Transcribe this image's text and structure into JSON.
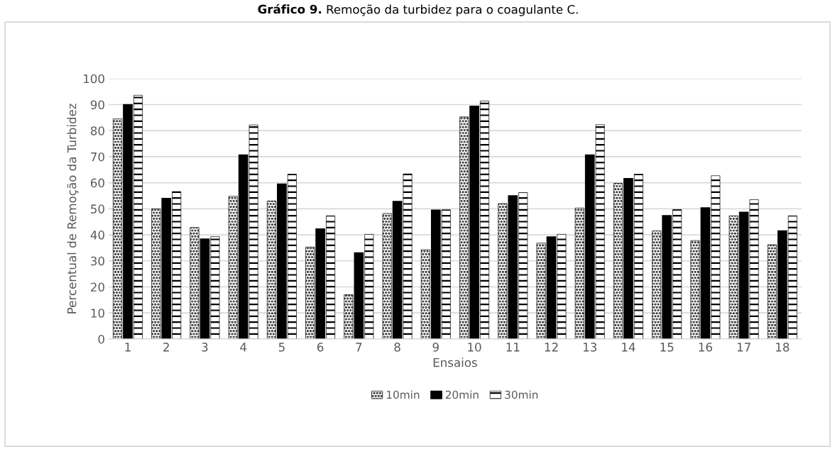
{
  "chart_data": {
    "type": "bar",
    "title": "Gráfico 9. Remoção da turbidez para o coagulante C.",
    "xlabel": "Ensaios",
    "ylabel": "Percentual de Remoção da Turbidez",
    "categories": [
      "1",
      "2",
      "3",
      "4",
      "5",
      "6",
      "7",
      "8",
      "9",
      "10",
      "11",
      "12",
      "13",
      "14",
      "15",
      "16",
      "17",
      "18"
    ],
    "series": [
      {
        "name": "10min",
        "color": "#000000",
        "values": [
          84.5,
          50,
          42.8,
          54.8,
          53,
          35.3,
          17,
          48.2,
          34.3,
          85.3,
          52,
          36.8,
          50.3,
          59.8,
          41.5,
          37.8,
          47.3,
          36.2
        ]
      },
      {
        "name": "20min",
        "color": "#000000",
        "values": [
          90,
          54,
          38.4,
          70.7,
          59.5,
          42.3,
          33.1,
          52.8,
          49.5,
          89.4,
          55,
          39.2,
          70.7,
          61.6,
          47.4,
          50.4,
          48.7,
          41.5
        ]
      },
      {
        "name": "30min",
        "color": "#000000",
        "values": [
          93.6,
          56.6,
          39.3,
          82.2,
          63.3,
          47.3,
          40.2,
          63.4,
          49.6,
          91.4,
          56.2,
          40.2,
          82.3,
          63.3,
          49.7,
          62.7,
          53.5,
          47.3
        ]
      }
    ],
    "ylim": [
      0,
      100
    ],
    "yticks": [
      0,
      10,
      20,
      30,
      40,
      50,
      60,
      70,
      80,
      90,
      100
    ],
    "grid": "y",
    "legend": "bottom"
  }
}
